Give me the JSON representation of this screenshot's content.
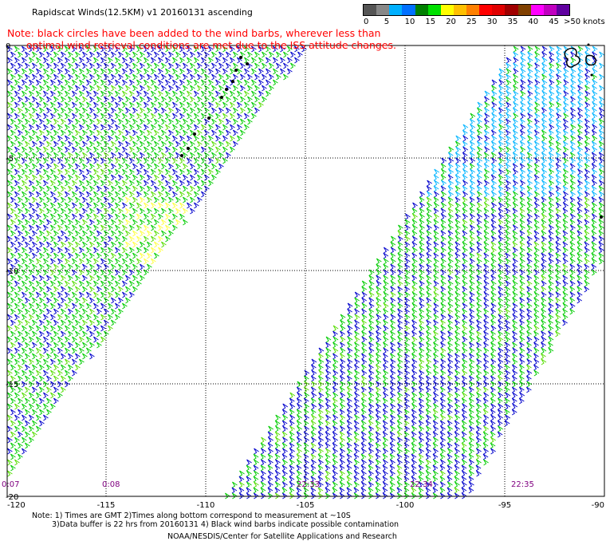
{
  "header": {
    "title": "Rapidscat Winds(12.5KM) v1 20160131 ascending",
    "note_line1": "Note: black circles have been added to the wind barbs, wherever less than",
    "note_line2": "      optimal wind retrieval conditions are met due to the ISS attitude changes."
  },
  "legend": {
    "unit": ">50 knots",
    "labels": [
      "0",
      "5",
      "10",
      "15",
      "20",
      "25",
      "30",
      "35",
      "40",
      "45"
    ],
    "colors": [
      "#555555",
      "#888888",
      "#00b0ff",
      "#0070ff",
      "#008000",
      "#00e000",
      "#ffff00",
      "#ffc000",
      "#ff8000",
      "#ff0000",
      "#e00000",
      "#a00000",
      "#804000",
      "#ff00ff",
      "#c000c0",
      "#6000a0"
    ]
  },
  "map": {
    "lon_labels": [
      "-120",
      "-115",
      "-110",
      "-105",
      "-100",
      "-95",
      "-90"
    ],
    "lat_labels": [
      "0",
      "-5",
      "-10",
      "-15",
      "-20"
    ],
    "time_labels": [
      "0:07",
      "0:08",
      "22:33",
      "22:34",
      "22:35"
    ],
    "barb_colors": {
      "low": "#00b4ff",
      "mid": "#0000cc",
      "green": "#00cc00",
      "bright": "#55dd00",
      "yellow": "#ffff40",
      "flag": "#000000"
    }
  },
  "footer": {
    "line1": "Note: 1) Times are GMT 2)Times along bottom correspond to measurement at ~10S",
    "line2": "3)Data buffer is 22 hrs from 20160131 4) Black wind barbs indicate possible contamination",
    "line3": "NOAA/NESDIS/Center for Satellite Applications and Research"
  }
}
